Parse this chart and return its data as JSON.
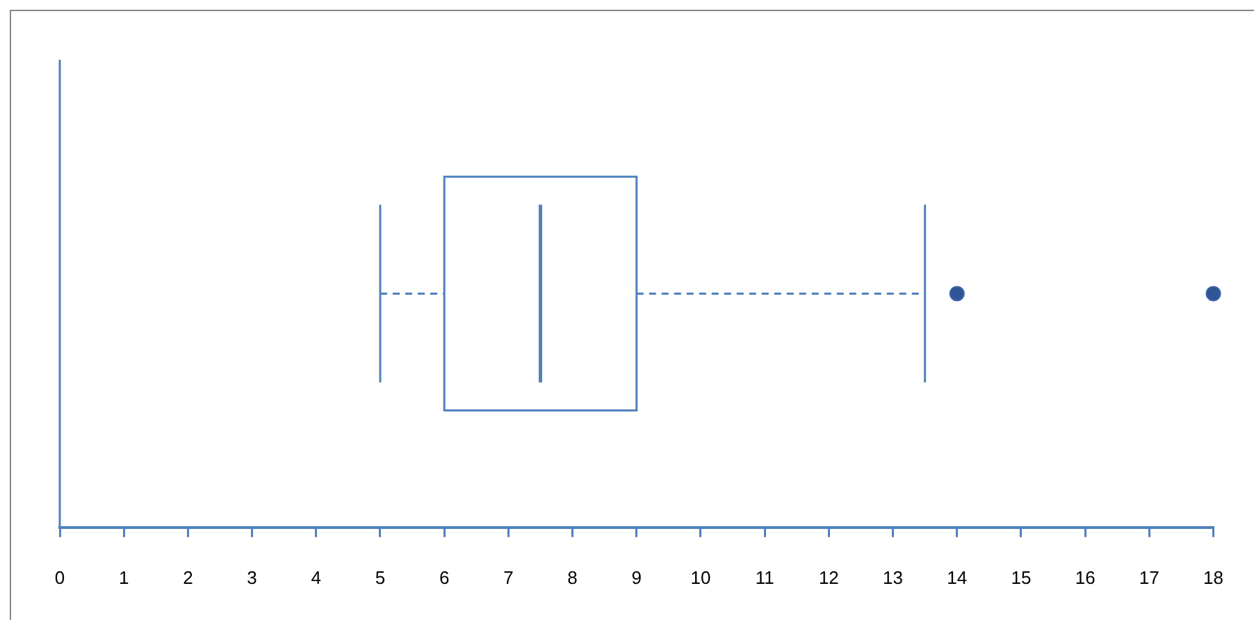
{
  "chart_data": {
    "type": "box",
    "orientation": "horizontal",
    "categories": [
      null
    ],
    "boxes": [
      {
        "low": 5,
        "q1": 6,
        "median": 7.5,
        "q3": 9,
        "high": 13.5,
        "outliers": [
          14,
          18
        ]
      }
    ],
    "color": "#4f81bd",
    "xlim": [
      0,
      18
    ],
    "xticks": [
      0,
      1,
      2,
      3,
      4,
      5,
      6,
      7,
      8,
      9,
      10,
      11,
      12,
      13,
      14,
      15,
      16,
      17,
      18
    ],
    "grid": false,
    "line_style": "dashed",
    "marker": "circle"
  }
}
